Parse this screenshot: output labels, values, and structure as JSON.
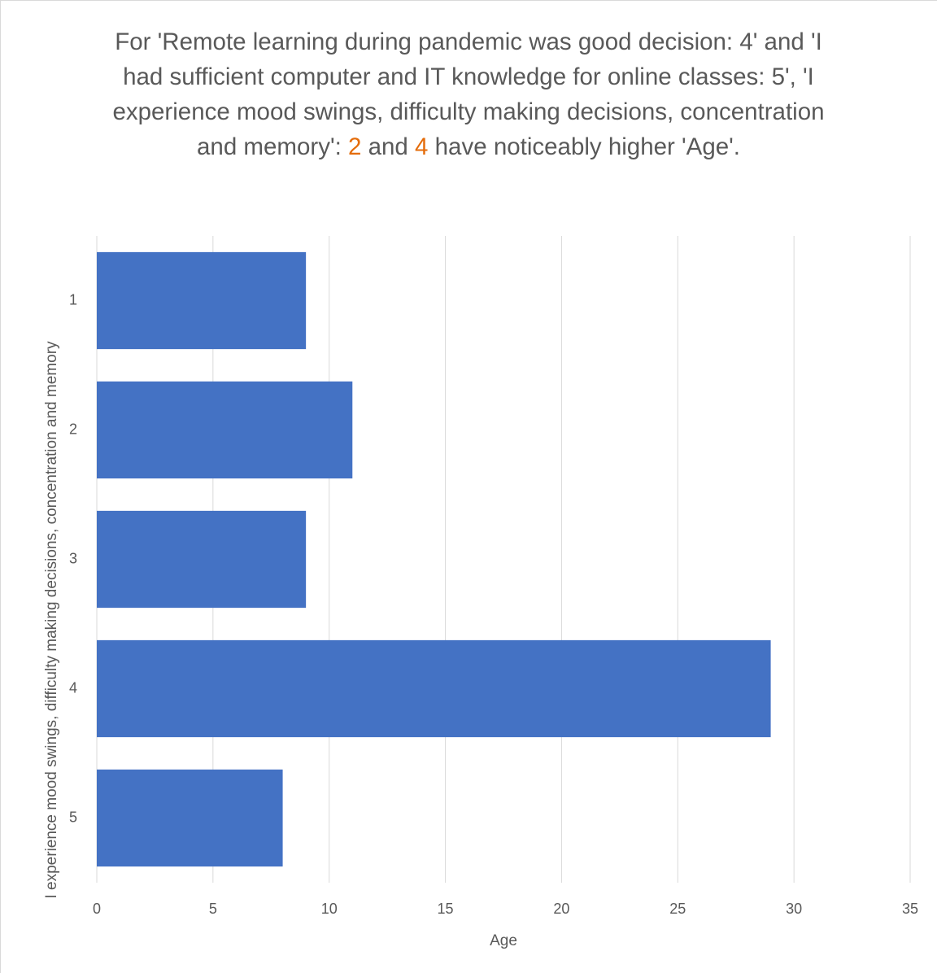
{
  "chart_data": {
    "type": "bar",
    "orientation": "horizontal",
    "title": [
      {
        "text": "For 'Remote learning during pandemic was good decision: 4' and 'I had sufficient computer and IT knowledge for online classes: 5', 'I experience mood swings, difficulty making decisions, concentration and memory': "
      },
      {
        "text": "2",
        "color": "#e46c0a"
      },
      {
        "text": " and "
      },
      {
        "text": "4",
        "color": "#e46c0a"
      },
      {
        "text": " have noticeably higher 'Age'."
      }
    ],
    "xlabel": "Age",
    "ylabel": "I experience mood swings, difficulty making decisions, concentration and memory",
    "categories": [
      "1",
      "2",
      "3",
      "4",
      "5"
    ],
    "values": [
      9,
      11,
      9,
      29,
      8
    ],
    "color": "#4472c4",
    "xlim": [
      0,
      35
    ],
    "xticks": [
      0,
      5,
      10,
      15,
      20,
      25,
      30,
      35
    ],
    "grid": true
  }
}
